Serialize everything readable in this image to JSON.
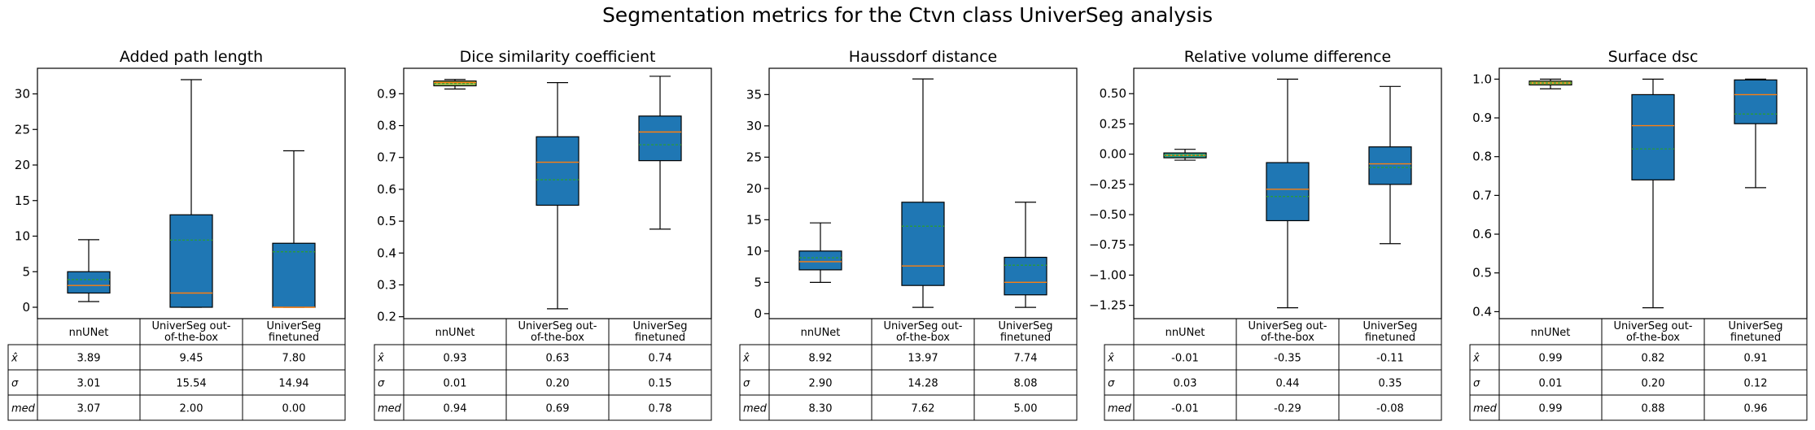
{
  "suptitle": "Segmentation metrics for the Ctvn class UniverSeg analysis",
  "colors": {
    "box_fill": "#1f77b4",
    "box_fill_alt": "#9bbb59",
    "median": "#ff7f0e",
    "mean": "#2ca02c",
    "axis": "#000000"
  },
  "table_headers": [
    "nnUNet",
    "UniverSeg out-of-the-box",
    "UniverSeg finetuned"
  ],
  "table_header_lines": [
    [
      "nnUNet"
    ],
    [
      "UniverSeg out-",
      "of-the-box"
    ],
    [
      "UniverSeg",
      "finetuned"
    ]
  ],
  "row_labels": [
    "x̂",
    "σ",
    "med"
  ],
  "chart_data": [
    {
      "type": "box",
      "title": "Added path length",
      "categories": [
        "nnUNet",
        "UniverSeg out-of-the-box",
        "UniverSeg finetuned"
      ],
      "ylim": [
        -1.6,
        33.6
      ],
      "yticks": [
        0,
        5,
        10,
        15,
        20,
        25,
        30
      ],
      "ytick_labels": [
        "0",
        "5",
        "10",
        "15",
        "20",
        "25",
        "30"
      ],
      "boxes": [
        {
          "whislo": 0.8,
          "q1": 2.0,
          "med": 3.07,
          "mean": 3.89,
          "q3": 5.0,
          "whishi": 9.5,
          "fill": "#1f77b4"
        },
        {
          "whislo": 0.0,
          "q1": 0.0,
          "med": 2.0,
          "mean": 9.45,
          "q3": 13.0,
          "whishi": 32.0,
          "fill": "#1f77b4"
        },
        {
          "whislo": 0.0,
          "q1": 0.0,
          "med": 0.0,
          "mean": 7.8,
          "q3": 9.0,
          "whishi": 22.0,
          "fill": "#1f77b4"
        }
      ],
      "table": [
        [
          "3.89",
          "9.45",
          "7.80"
        ],
        [
          "3.01",
          "15.54",
          "14.94"
        ],
        [
          "3.07",
          "2.00",
          "0.00"
        ]
      ]
    },
    {
      "type": "box",
      "title": "Dice similarity coefficient",
      "categories": [
        "nnUNet",
        "UniverSeg out-of-the-box",
        "UniverSeg finetuned"
      ],
      "ylim": [
        0.194,
        0.98
      ],
      "yticks": [
        0.2,
        0.3,
        0.4,
        0.5,
        0.6,
        0.7,
        0.8,
        0.9
      ],
      "ytick_labels": [
        "0.2",
        "0.3",
        "0.4",
        "0.5",
        "0.6",
        "0.7",
        "0.8",
        "0.9"
      ],
      "boxes": [
        {
          "whislo": 0.915,
          "q1": 0.925,
          "med": 0.935,
          "mean": 0.932,
          "q3": 0.94,
          "whishi": 0.945,
          "fill": "#9bbb59"
        },
        {
          "whislo": 0.225,
          "q1": 0.55,
          "med": 0.685,
          "mean": 0.63,
          "q3": 0.765,
          "whishi": 0.935,
          "fill": "#1f77b4"
        },
        {
          "whislo": 0.475,
          "q1": 0.69,
          "med": 0.78,
          "mean": 0.74,
          "q3": 0.83,
          "whishi": 0.955,
          "fill": "#1f77b4"
        }
      ],
      "table": [
        [
          "0.93",
          "0.63",
          "0.74"
        ],
        [
          "0.01",
          "0.20",
          "0.15"
        ],
        [
          "0.94",
          "0.69",
          "0.78"
        ]
      ]
    },
    {
      "type": "box",
      "title": "Haussdorf distance",
      "categories": [
        "nnUNet",
        "UniverSeg out-of-the-box",
        "UniverSeg finetuned"
      ],
      "ylim": [
        -0.8,
        39.2
      ],
      "yticks": [
        0,
        5,
        10,
        15,
        20,
        25,
        30,
        35
      ],
      "ytick_labels": [
        "0",
        "5",
        "10",
        "15",
        "20",
        "25",
        "30",
        "35"
      ],
      "boxes": [
        {
          "whislo": 5.0,
          "q1": 7.0,
          "med": 8.3,
          "mean": 8.92,
          "q3": 10.0,
          "whishi": 14.5,
          "fill": "#1f77b4"
        },
        {
          "whislo": 1.0,
          "q1": 4.5,
          "med": 7.62,
          "mean": 13.97,
          "q3": 17.8,
          "whishi": 37.5,
          "fill": "#1f77b4"
        },
        {
          "whislo": 1.0,
          "q1": 3.0,
          "med": 5.0,
          "mean": 7.74,
          "q3": 9.0,
          "whishi": 17.8,
          "fill": "#1f77b4"
        }
      ],
      "table": [
        [
          "8.92",
          "13.97",
          "7.74"
        ],
        [
          "2.90",
          "14.28",
          "8.08"
        ],
        [
          "8.30",
          "7.62",
          "5.00"
        ]
      ]
    },
    {
      "type": "box",
      "title": "Relative volume difference",
      "categories": [
        "nnUNet",
        "UniverSeg out-of-the-box",
        "UniverSeg finetuned"
      ],
      "ylim": [
        -1.36,
        0.71
      ],
      "yticks": [
        -1.25,
        -1.0,
        -0.75,
        -0.5,
        -0.25,
        0.0,
        0.25,
        0.5
      ],
      "ytick_labels": [
        "−1.25",
        "−1.00",
        "−0.75",
        "−0.50",
        "−0.25",
        "0.00",
        "0.25",
        "0.50"
      ],
      "boxes": [
        {
          "whislo": -0.05,
          "q1": -0.03,
          "med": -0.01,
          "mean": -0.01,
          "q3": 0.01,
          "whishi": 0.04,
          "fill": "#2a9d8f"
        },
        {
          "whislo": -1.27,
          "q1": -0.55,
          "med": -0.29,
          "mean": -0.35,
          "q3": -0.07,
          "whishi": 0.62,
          "fill": "#1f77b4"
        },
        {
          "whislo": -0.74,
          "q1": -0.25,
          "med": -0.08,
          "mean": -0.11,
          "q3": 0.06,
          "whishi": 0.56,
          "fill": "#1f77b4"
        }
      ],
      "table": [
        [
          "-0.01",
          "-0.35",
          "-0.11"
        ],
        [
          "0.03",
          "0.44",
          "0.35"
        ],
        [
          "-0.01",
          "-0.29",
          "-0.08"
        ]
      ]
    },
    {
      "type": "box",
      "title": "Surface dsc",
      "categories": [
        "nnUNet",
        "UniverSeg out-of-the-box",
        "UniverSeg finetuned"
      ],
      "ylim": [
        0.382,
        1.028
      ],
      "yticks": [
        0.4,
        0.5,
        0.6,
        0.7,
        0.8,
        0.9,
        1.0
      ],
      "ytick_labels": [
        "0.4",
        "0.5",
        "0.6",
        "0.7",
        "0.8",
        "0.9",
        "1.0"
      ],
      "boxes": [
        {
          "whislo": 0.975,
          "q1": 0.985,
          "med": 0.99,
          "mean": 0.99,
          "q3": 0.995,
          "whishi": 1.0,
          "fill": "#9bbb59"
        },
        {
          "whislo": 0.41,
          "q1": 0.74,
          "med": 0.88,
          "mean": 0.82,
          "q3": 0.96,
          "whishi": 1.0,
          "fill": "#1f77b4"
        },
        {
          "whislo": 0.72,
          "q1": 0.885,
          "med": 0.96,
          "mean": 0.91,
          "q3": 0.998,
          "whishi": 1.0,
          "fill": "#1f77b4"
        }
      ],
      "table": [
        [
          "0.99",
          "0.82",
          "0.91"
        ],
        [
          "0.01",
          "0.20",
          "0.12"
        ],
        [
          "0.99",
          "0.88",
          "0.96"
        ]
      ]
    }
  ]
}
